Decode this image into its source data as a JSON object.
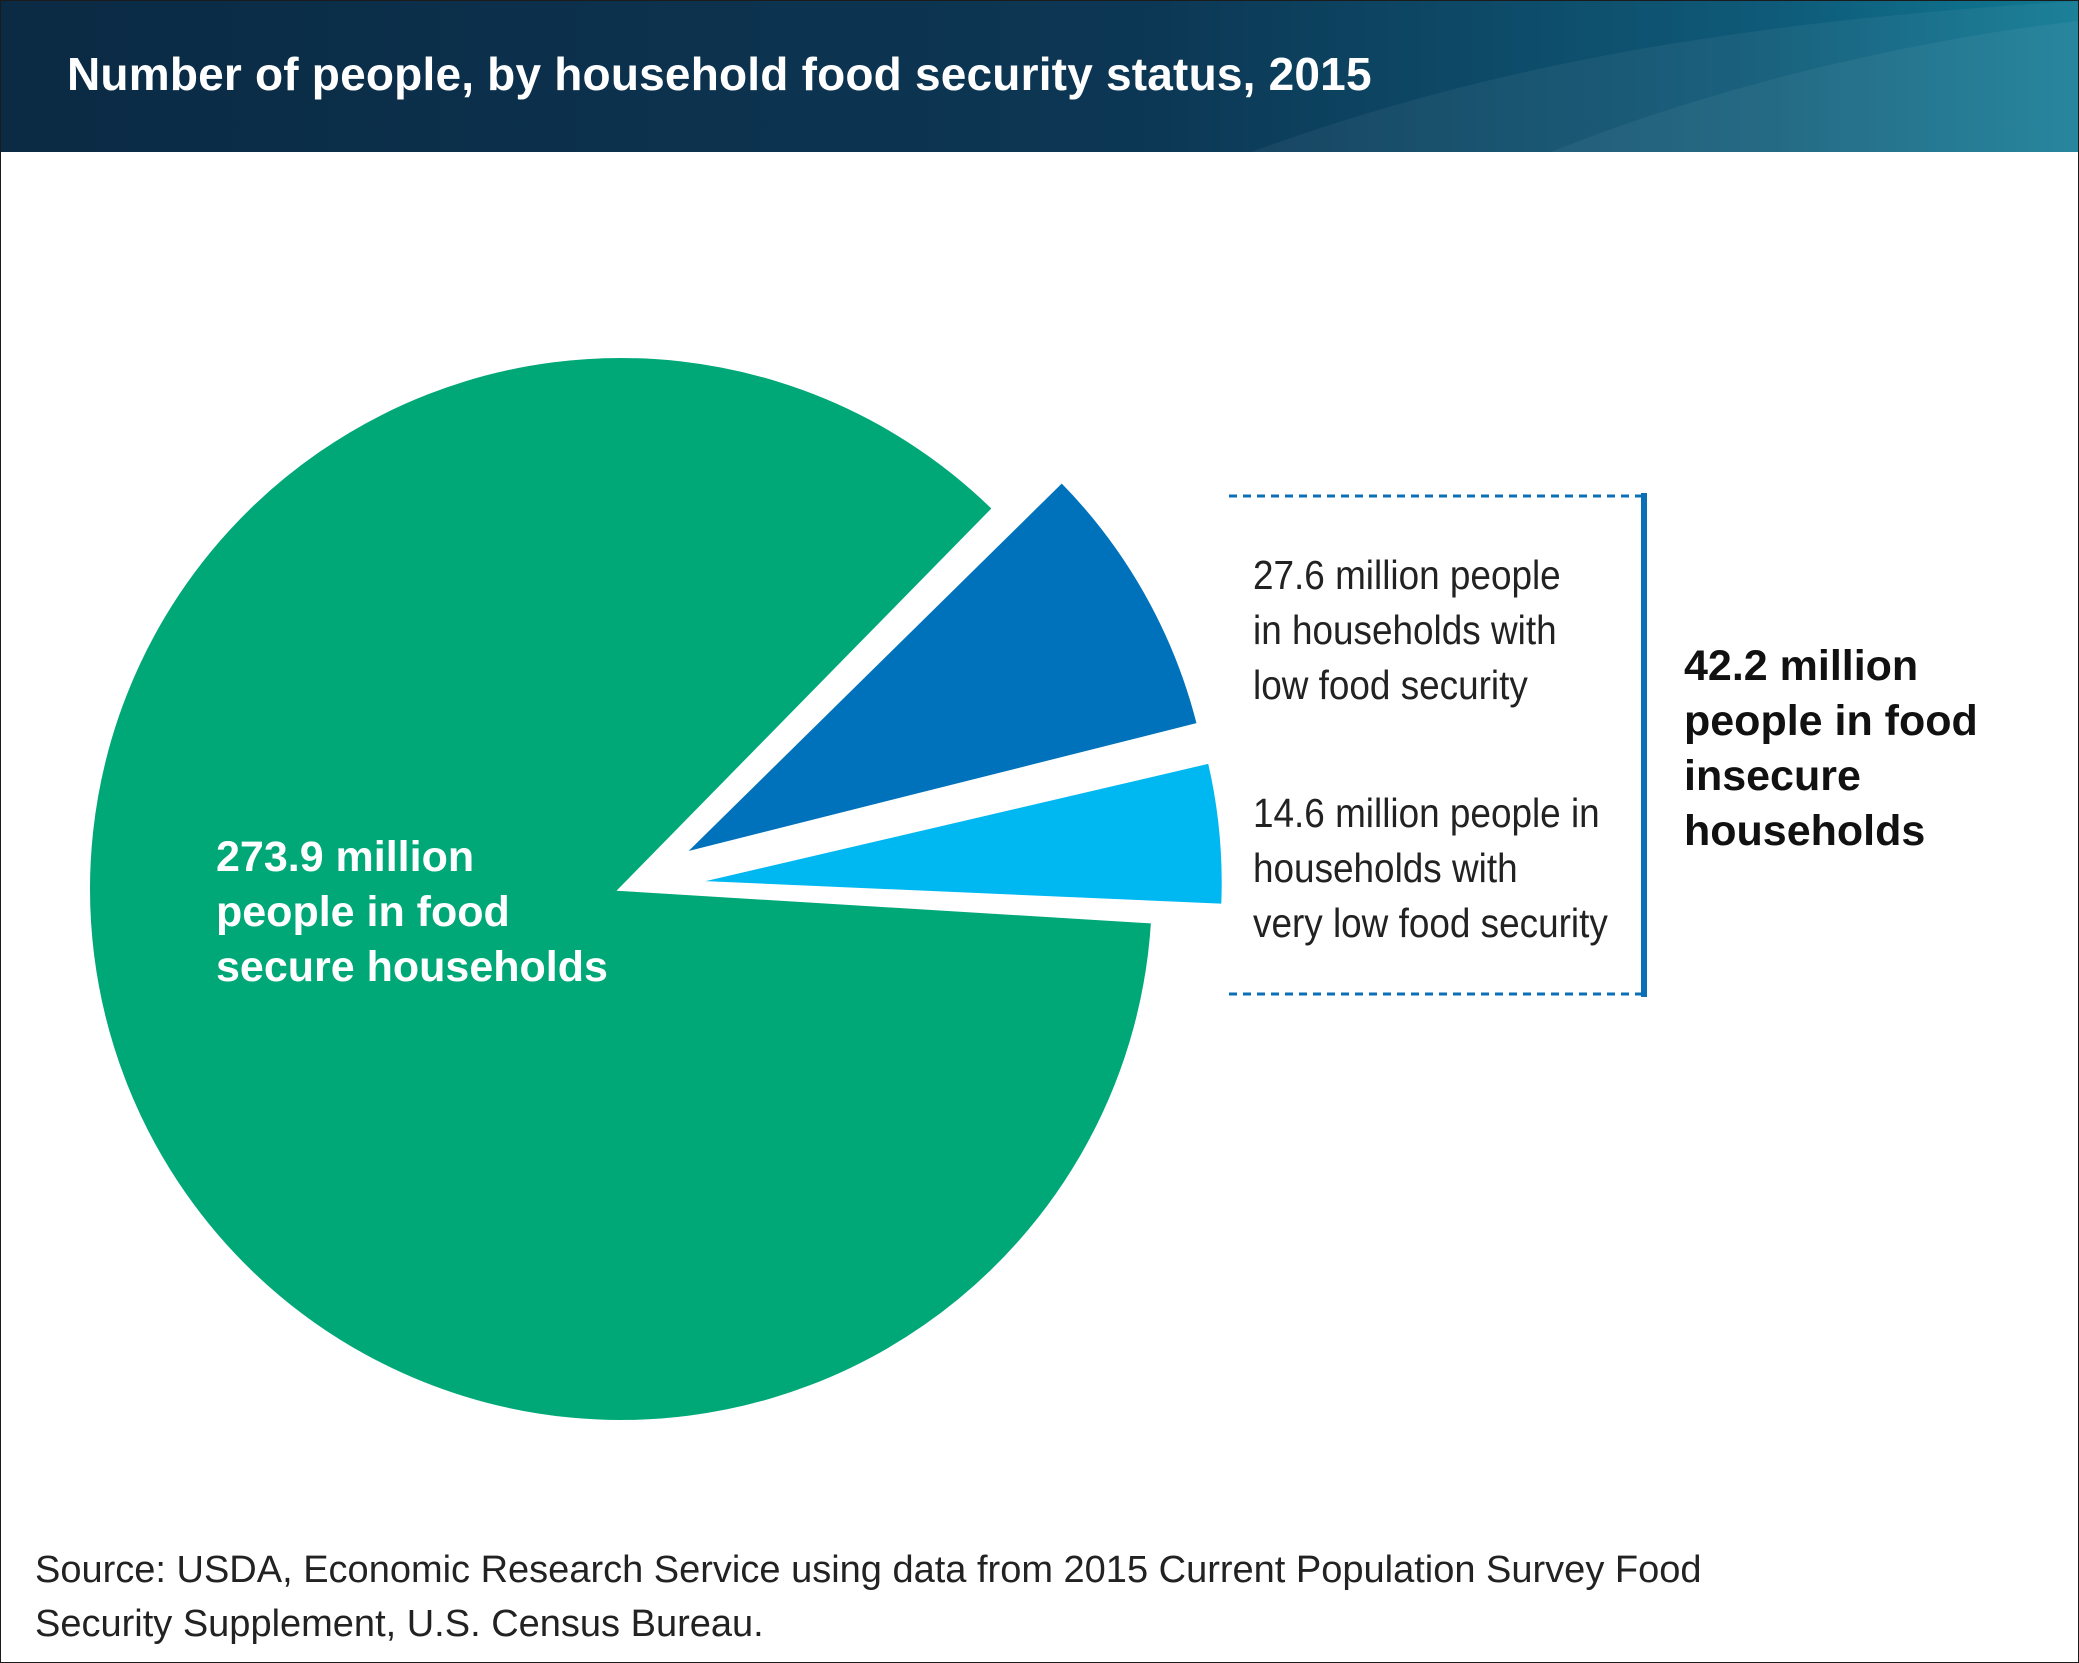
{
  "title": "Number of people, by household food security status, 2015",
  "chart_data": {
    "type": "pie",
    "unit": "million people",
    "slices": [
      {
        "label_lines": [
          "273.9 million",
          "people in food",
          "secure households"
        ],
        "value": 273.9,
        "color": "#00a878"
      },
      {
        "label_lines": [
          "27.6 million people",
          "in households with",
          "low food security"
        ],
        "value": 27.6,
        "color": "#0072bc"
      },
      {
        "label_lines": [
          "14.6 million people in",
          "households with",
          "very low food security"
        ],
        "value": 14.6,
        "color": "#00b8f1"
      }
    ],
    "group_annotation": {
      "label_lines": [
        "42.2 million",
        "people in food",
        "insecure",
        "households"
      ],
      "value": 42.2,
      "bracket_color": "#0a6fb4"
    }
  },
  "source_lines": [
    "Source: USDA, Economic Research Service using data from 2015 Current Population Survey Food",
    "Security Supplement, U.S. Census Bureau."
  ]
}
